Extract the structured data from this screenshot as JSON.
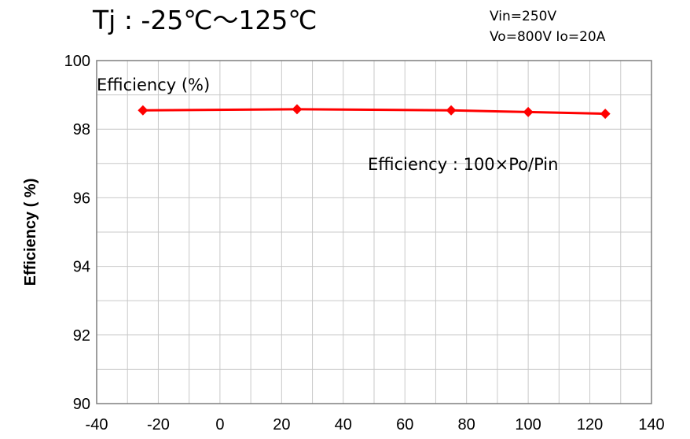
{
  "chart_data": {
    "type": "line",
    "title": "Tj : -25℃～125℃",
    "conditions": [
      "Vin=250V",
      "Vo=800V Io=20A"
    ],
    "xlabel": "",
    "ylabel": "Efficiency ( %)",
    "xlim": [
      -40,
      140
    ],
    "ylim": [
      90,
      100
    ],
    "x_ticks": [
      -40,
      -20,
      0,
      20,
      40,
      60,
      80,
      100,
      120,
      140
    ],
    "y_ticks": [
      90,
      92,
      94,
      96,
      98,
      100
    ],
    "x_minor_step": 10,
    "y_minor_step": 1,
    "grid": true,
    "series": [
      {
        "name": "Efficiency (%)",
        "color": "#ff0000",
        "marker": "diamond",
        "x": [
          -25,
          25,
          75,
          100,
          125
        ],
        "y": [
          98.55,
          98.58,
          98.55,
          98.5,
          98.45
        ]
      }
    ],
    "annotations": [
      "Efficiency : 100×Po/Pin"
    ]
  }
}
